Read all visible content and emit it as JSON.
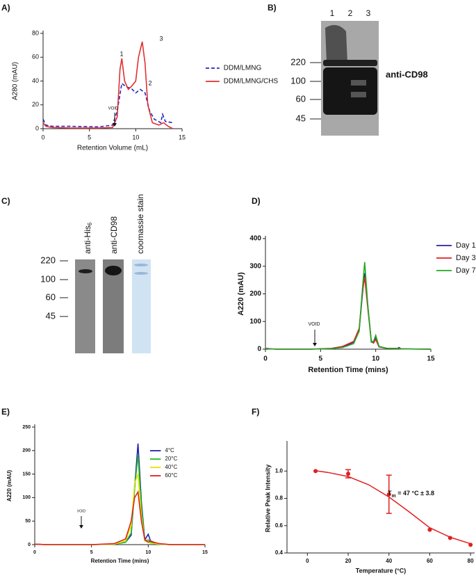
{
  "chart_data": [
    {
      "type": "line",
      "panel_label": "A)",
      "xlabel": "Retention Volume (mL)",
      "ylabel": "A280 (mAU)",
      "xlim": [
        0,
        15
      ],
      "ylim": [
        0,
        80
      ],
      "xticks": [
        0,
        5,
        10,
        15
      ],
      "yticks": [
        0,
        20,
        40,
        60,
        80
      ],
      "legend": "upper right",
      "annotations": [
        "1",
        "2",
        "3"
      ],
      "void_label": "VOID",
      "series": [
        {
          "name": "DDM/LMNG",
          "color": "#2424c0",
          "dashed": true,
          "x": [
            0,
            0.3,
            1,
            3,
            6,
            7.5,
            8,
            8.5,
            9,
            9.5,
            10,
            10.5,
            11,
            11.5,
            12,
            12.7,
            12.9,
            13.2,
            14
          ],
          "values": [
            8,
            3,
            2,
            2,
            1.5,
            3,
            15,
            38,
            35,
            34,
            30,
            33,
            30,
            15,
            8,
            5,
            12,
            6,
            5
          ]
        },
        {
          "name": "DDM/LMNG/CHS",
          "color": "#e03030",
          "dashed": false,
          "x": [
            0,
            0.3,
            1,
            3,
            6,
            7.5,
            8,
            8.3,
            8.5,
            8.8,
            9.2,
            9.6,
            10,
            10.3,
            10.7,
            11,
            11.3,
            11.8,
            12.5,
            13,
            13.5,
            14
          ],
          "values": [
            5,
            2,
            1,
            0.5,
            0.5,
            1,
            10,
            50,
            59,
            40,
            33,
            36,
            40,
            60,
            73,
            55,
            20,
            5,
            3,
            5,
            2,
            0
          ]
        }
      ]
    },
    {
      "type": "line",
      "panel_label": "D)",
      "xlabel": "Retention Time (mins)",
      "ylabel": "A220 (mAU)",
      "xlim": [
        0,
        15
      ],
      "ylim": [
        0,
        400
      ],
      "xticks": [
        0,
        5,
        10,
        15
      ],
      "yticks": [
        0,
        100,
        200,
        300,
        400
      ],
      "legend": "upper right",
      "annotations": [],
      "void_label": "VOID",
      "series": [
        {
          "name": "Day 1",
          "color": "#2222aa",
          "dashed": false,
          "x": [
            0,
            0.5,
            1,
            4,
            6,
            7,
            8,
            8.5,
            8.8,
            9,
            9.3,
            9.6,
            9.8,
            10,
            10.3,
            11,
            12,
            12.1,
            12.3,
            15
          ],
          "values": [
            3,
            1,
            0,
            0,
            2,
            8,
            25,
            70,
            200,
            275,
            150,
            30,
            25,
            40,
            10,
            3,
            3,
            6,
            1,
            0
          ]
        },
        {
          "name": "Day 3",
          "color": "#e02020",
          "dashed": false,
          "x": [
            0,
            0.5,
            1,
            4,
            6,
            7,
            8,
            8.5,
            8.8,
            9,
            9.3,
            9.6,
            9.8,
            10,
            10.3,
            11,
            12,
            12.1,
            12.3,
            15
          ],
          "values": [
            3,
            1,
            0,
            0,
            3,
            10,
            28,
            75,
            210,
            260,
            140,
            28,
            22,
            35,
            8,
            3,
            3,
            3,
            1,
            0
          ]
        },
        {
          "name": "Day 7",
          "color": "#22aa22",
          "dashed": false,
          "x": [
            0,
            0.5,
            1,
            4,
            6,
            7,
            8,
            8.5,
            8.8,
            9,
            9.3,
            9.6,
            9.8,
            10,
            10.3,
            11,
            12,
            12.1,
            12.3,
            15
          ],
          "values": [
            3,
            1,
            0,
            0,
            2,
            6,
            20,
            65,
            220,
            315,
            150,
            25,
            28,
            50,
            10,
            3,
            2,
            2,
            1,
            0
          ]
        }
      ]
    },
    {
      "type": "line",
      "panel_label": "E)",
      "xlabel": "Retention Time (mins)",
      "ylabel": "A220 (mAU)",
      "xlim": [
        0,
        15
      ],
      "ylim": [
        0,
        250
      ],
      "xticks": [
        0,
        5,
        10,
        15
      ],
      "yticks": [
        0,
        50,
        100,
        150,
        200,
        250
      ],
      "legend": "upper right",
      "annotations": [],
      "void_label": "VOID",
      "series": [
        {
          "name": "4°C",
          "color": "#2222aa",
          "dashed": false,
          "x": [
            0,
            1,
            5,
            7,
            8,
            8.5,
            8.8,
            9.1,
            9.4,
            9.7,
            10,
            10.2,
            10.5,
            11,
            12,
            15
          ],
          "values": [
            1,
            0,
            0,
            1,
            5,
            20,
            120,
            215,
            90,
            10,
            22,
            8,
            3,
            1,
            0,
            0
          ]
        },
        {
          "name": "20°C",
          "color": "#22bb22",
          "dashed": false,
          "x": [
            0,
            1,
            5,
            7,
            8,
            8.5,
            8.8,
            9.1,
            9.4,
            9.7,
            10,
            10.2,
            10.5,
            11,
            12,
            15
          ],
          "values": [
            1,
            0,
            0,
            1,
            5,
            25,
            120,
            190,
            80,
            8,
            10,
            5,
            2,
            1,
            0,
            0
          ]
        },
        {
          "name": "40°C",
          "color": "#e6e600",
          "dashed": false,
          "x": [
            0,
            1,
            5,
            7,
            8,
            8.5,
            8.8,
            9.1,
            9.4,
            9.7,
            10,
            10.2,
            10.5,
            11,
            12,
            15
          ],
          "values": [
            1,
            0,
            0,
            1,
            8,
            40,
            130,
            150,
            60,
            8,
            5,
            3,
            2,
            1,
            0,
            0
          ]
        },
        {
          "name": "60°C",
          "color": "#e02020",
          "dashed": false,
          "x": [
            0,
            1,
            5,
            7,
            8,
            8.5,
            8.8,
            9.1,
            9.4,
            9.7,
            10,
            10.2,
            10.5,
            11,
            12,
            15
          ],
          "values": [
            1,
            0,
            0,
            2,
            12,
            50,
            100,
            112,
            50,
            10,
            5,
            8,
            5,
            2,
            0,
            0
          ]
        }
      ]
    },
    {
      "type": "scatter",
      "panel_label": "F)",
      "xlabel": "Temperature (°C)",
      "ylabel": "Relative Peak Intensity",
      "xlim": [
        -10,
        82
      ],
      "ylim": [
        0.4,
        1.2
      ],
      "xticks": [
        0,
        20,
        40,
        60,
        80
      ],
      "yticks": [
        0.4,
        0.6,
        0.8,
        {
          "value": 1.0,
          "label": "1.0"
        }
      ],
      "color": "#e02020",
      "x": [
        4,
        20,
        40,
        60,
        70,
        80
      ],
      "values": [
        1.0,
        0.98,
        0.83,
        0.57,
        0.51,
        0.46
      ],
      "errors": [
        0,
        0.03,
        0.14,
        0,
        0,
        0
      ],
      "fit": {
        "x": [
          4,
          10,
          20,
          30,
          40,
          50,
          60,
          70,
          80
        ],
        "values": [
          1.003,
          0.99,
          0.96,
          0.9,
          0.81,
          0.7,
          0.585,
          0.515,
          0.468
        ]
      },
      "annotation": {
        "text": "T",
        "subscript": "m",
        "rest": " = 47 °C ± 3.8"
      }
    }
  ],
  "gels": [
    {
      "panel_label": "B)",
      "lanes": [
        "1",
        "2",
        "3"
      ],
      "markers": [
        220,
        100,
        60,
        45
      ],
      "antibody": "anti-CD98"
    },
    {
      "panel_label": "C)",
      "lanes": [
        {
          "text": "anti-His",
          "subscript": "6"
        },
        {
          "text": "anti-CD98"
        },
        {
          "text": "coomassie stain"
        }
      ],
      "markers": [
        220,
        100,
        60,
        45
      ]
    }
  ]
}
